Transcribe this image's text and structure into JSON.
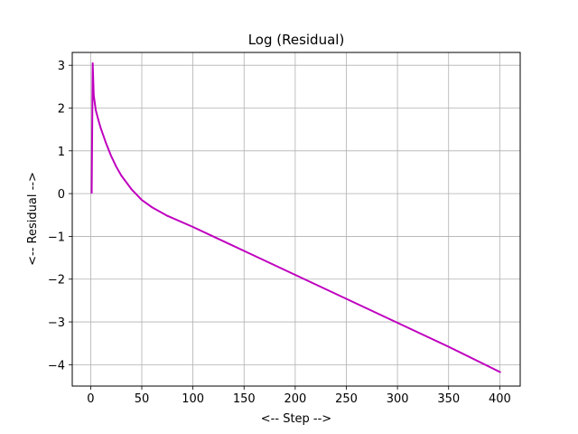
{
  "chart_data": {
    "type": "line",
    "title": "Log (Residual)",
    "xlabel": "<-- Step -->",
    "ylabel": "<-- Residual -->",
    "xlim": [
      -18,
      420
    ],
    "ylim": [
      -4.5,
      3.3
    ],
    "xticks": [
      0,
      50,
      100,
      150,
      200,
      250,
      300,
      350,
      400
    ],
    "yticks": [
      -4,
      -3,
      -2,
      -1,
      0,
      1,
      2,
      3
    ],
    "grid": true,
    "line_color": "#bf00bf",
    "series": [
      {
        "x": [
          1,
          2,
          3,
          5,
          8,
          10,
          15,
          20,
          25,
          30,
          40,
          50,
          60,
          75,
          100,
          150,
          200,
          250,
          300,
          350,
          401
        ],
        "values": [
          0.0,
          3.05,
          2.3,
          1.95,
          1.68,
          1.52,
          1.18,
          0.88,
          0.63,
          0.42,
          0.1,
          -0.15,
          -0.32,
          -0.52,
          -0.78,
          -1.34,
          -1.9,
          -2.46,
          -3.02,
          -3.58,
          -4.18
        ]
      }
    ]
  }
}
